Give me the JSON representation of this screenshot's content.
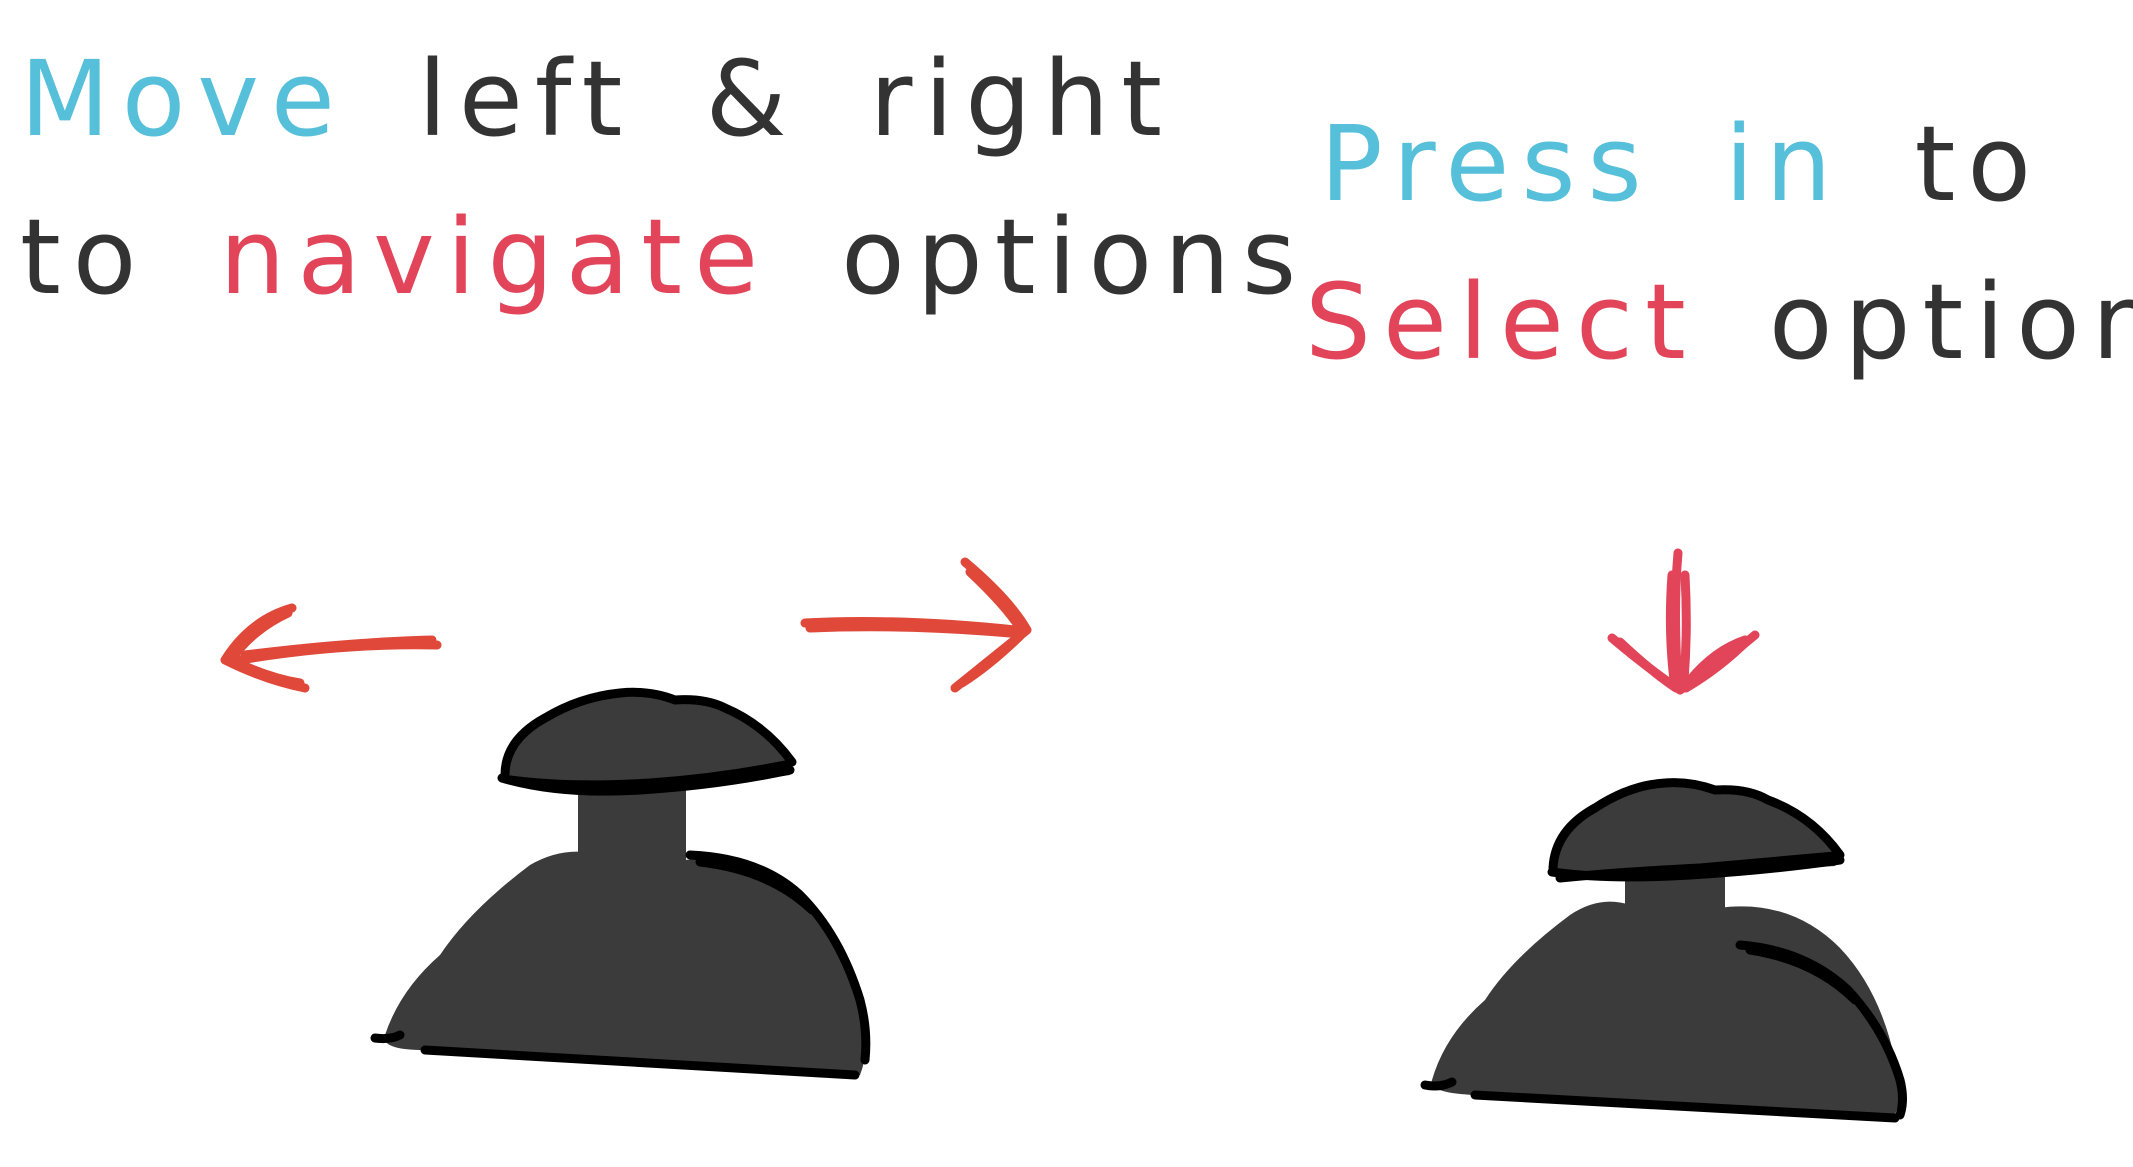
{
  "panels": [
    {
      "id": "left",
      "line1": [
        {
          "text": "Move",
          "color": "#56BFD9"
        },
        {
          "text": " left & right",
          "color": "#333333"
        }
      ],
      "line2": [
        {
          "text": "to ",
          "color": "#333333"
        },
        {
          "text": "navigate",
          "color": "#E2455A"
        },
        {
          "text": " options",
          "color": "#333333"
        }
      ],
      "arrows": [
        "left-arrow-icon",
        "right-arrow-icon"
      ]
    },
    {
      "id": "right",
      "line1": [
        {
          "text": "Press in",
          "color": "#56BFD9"
        },
        {
          "text": " to",
          "color": "#333333"
        }
      ],
      "line2": [
        {
          "text": "Select",
          "color": "#E2455A"
        },
        {
          "text": " option",
          "color": "#333333"
        }
      ],
      "arrows": [
        "down-arrow-icon"
      ]
    }
  ],
  "colors": {
    "accent_blue": "#56BFD9",
    "accent_red": "#E2455A",
    "arrow_red": "#E0483A",
    "joystick_fill": "#3b3b3b",
    "outline": "#000000",
    "text": "#333333"
  },
  "icons": [
    "joystick-icon",
    "left-arrow-icon",
    "right-arrow-icon",
    "down-arrow-icon"
  ]
}
